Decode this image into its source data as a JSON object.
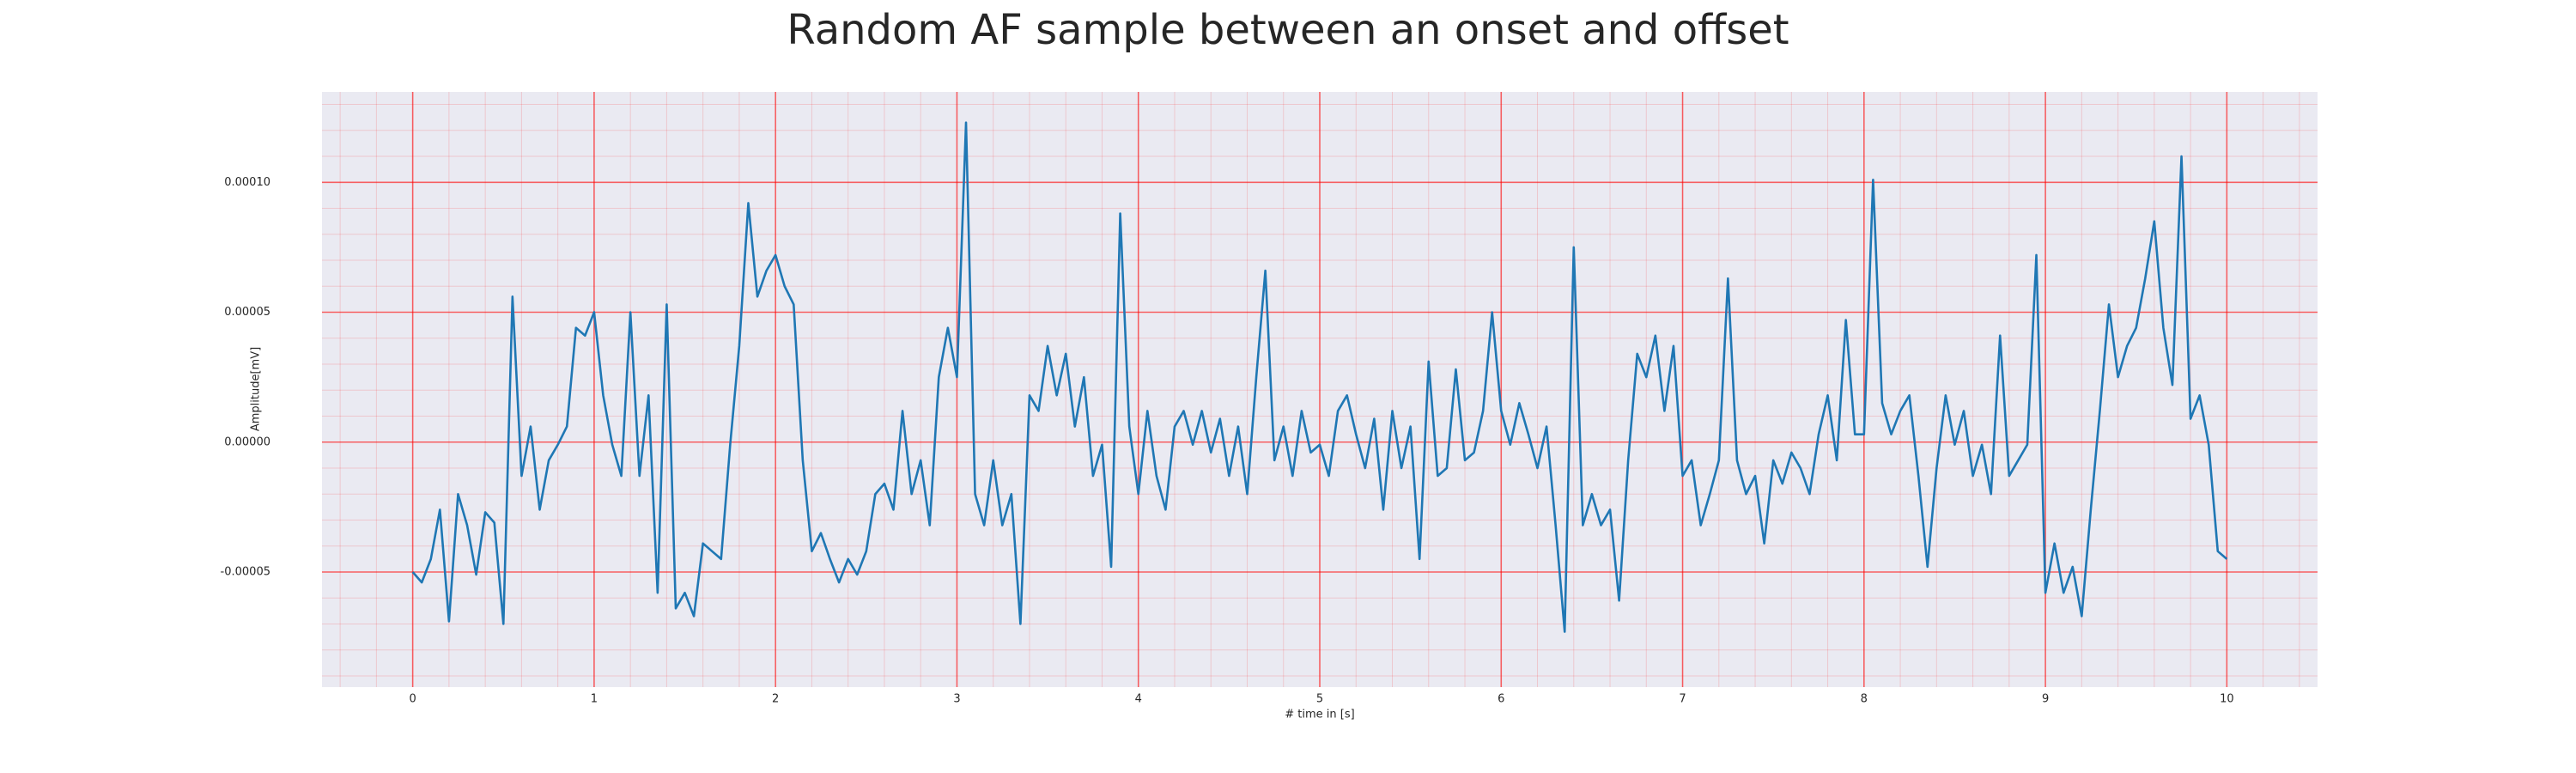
{
  "chart_data": {
    "type": "line",
    "title": "Random AF sample between an onset and offset",
    "xlabel": "# time in [s]",
    "ylabel": "Amplitude[mV]",
    "x": [
      0,
      0.05,
      0.1,
      0.15,
      0.2,
      0.25,
      0.3,
      0.35,
      0.4,
      0.45,
      0.5,
      0.55,
      0.6,
      0.65,
      0.7,
      0.75,
      0.8,
      0.85,
      0.9,
      0.95,
      1,
      1.05,
      1.1,
      1.15,
      1.2,
      1.25,
      1.3,
      1.35,
      1.4,
      1.45,
      1.5,
      1.55,
      1.6,
      1.65,
      1.7,
      1.75,
      1.8,
      1.85,
      1.9,
      1.95,
      2,
      2.05,
      2.1,
      2.15,
      2.2,
      2.25,
      2.3,
      2.35,
      2.4,
      2.45,
      2.5,
      2.55,
      2.6,
      2.65,
      2.7,
      2.75,
      2.8,
      2.85,
      2.9,
      2.95,
      3,
      3.05,
      3.1,
      3.15,
      3.2,
      3.25,
      3.3,
      3.35,
      3.4,
      3.45,
      3.5,
      3.55,
      3.6,
      3.65,
      3.7,
      3.75,
      3.8,
      3.85,
      3.9,
      3.95,
      4,
      4.05,
      4.1,
      4.15,
      4.2,
      4.25,
      4.3,
      4.35,
      4.4,
      4.45,
      4.5,
      4.55,
      4.6,
      4.65,
      4.7,
      4.75,
      4.8,
      4.85,
      4.9,
      4.95,
      5,
      5.05,
      5.1,
      5.15,
      5.2,
      5.25,
      5.3,
      5.35,
      5.4,
      5.45,
      5.5,
      5.55,
      5.6,
      5.65,
      5.7,
      5.75,
      5.8,
      5.85,
      5.9,
      5.95,
      6,
      6.05,
      6.1,
      6.15,
      6.2,
      6.25,
      6.3,
      6.35,
      6.4,
      6.45,
      6.5,
      6.55,
      6.6,
      6.65,
      6.7,
      6.75,
      6.8,
      6.85,
      6.9,
      6.95,
      7,
      7.05,
      7.1,
      7.15,
      7.2,
      7.25,
      7.3,
      7.35,
      7.4,
      7.45,
      7.5,
      7.55,
      7.6,
      7.65,
      7.7,
      7.75,
      7.8,
      7.85,
      7.9,
      7.95,
      8,
      8.05,
      8.1,
      8.15,
      8.2,
      8.25,
      8.3,
      8.35,
      8.4,
      8.45,
      8.5,
      8.55,
      8.6,
      8.65,
      8.7,
      8.75,
      8.8,
      8.85,
      8.9,
      8.95,
      9,
      9.05,
      9.1,
      9.15,
      9.2,
      9.25,
      9.3,
      9.35,
      9.4,
      9.45,
      9.5,
      9.55,
      9.6,
      9.65,
      9.7,
      9.75,
      9.8,
      9.85,
      9.9,
      9.95,
      10
    ],
    "values": [
      -5e-05,
      -5.4e-05,
      -4.5e-05,
      -2.6e-05,
      -6.9e-05,
      -2e-05,
      -3.2e-05,
      -5.1e-05,
      -2.7e-05,
      -3.1e-05,
      -7e-05,
      5.6e-05,
      -1.3e-05,
      6e-06,
      -2.6e-05,
      -7e-06,
      -1e-06,
      6e-06,
      4.4e-05,
      4.1e-05,
      5e-05,
      1.8e-05,
      -1e-06,
      -1.3e-05,
      5e-05,
      -1.3e-05,
      1.8e-05,
      -5.8e-05,
      5.3e-05,
      -6.4e-05,
      -5.8e-05,
      -6.7e-05,
      -3.9e-05,
      -4.2e-05,
      -4.5e-05,
      -1e-06,
      3.7e-05,
      9.2e-05,
      5.6e-05,
      6.6e-05,
      7.2e-05,
      6e-05,
      5.3e-05,
      -7e-06,
      -4.2e-05,
      -3.5e-05,
      -4.5e-05,
      -5.4e-05,
      -4.5e-05,
      -5.1e-05,
      -4.2e-05,
      -2e-05,
      -1.6e-05,
      -2.6e-05,
      1.2e-05,
      -2e-05,
      -7e-06,
      -3.2e-05,
      2.5e-05,
      4.4e-05,
      2.5e-05,
      0.000123,
      -2e-05,
      -3.2e-05,
      -7e-06,
      -3.2e-05,
      -2e-05,
      -7e-05,
      1.8e-05,
      1.2e-05,
      3.7e-05,
      1.8e-05,
      3.4e-05,
      6e-06,
      2.5e-05,
      -1.3e-05,
      -1e-06,
      -4.8e-05,
      8.8e-05,
      6e-06,
      -2e-05,
      1.2e-05,
      -1.3e-05,
      -2.6e-05,
      6e-06,
      1.2e-05,
      -1e-06,
      1.2e-05,
      -4e-06,
      9e-06,
      -1.3e-05,
      6e-06,
      -2e-05,
      2.5e-05,
      6.6e-05,
      -7e-06,
      6e-06,
      -1.3e-05,
      1.2e-05,
      -4e-06,
      -1e-06,
      -1.3e-05,
      1.2e-05,
      1.8e-05,
      3e-06,
      -1e-05,
      9e-06,
      -2.6e-05,
      1.2e-05,
      -1e-05,
      6e-06,
      -4.5e-05,
      3.1e-05,
      -1.3e-05,
      -1e-05,
      2.8e-05,
      -7e-06,
      -4e-06,
      1.2e-05,
      5e-05,
      1.2e-05,
      -1e-06,
      1.5e-05,
      3e-06,
      -1e-05,
      6e-06,
      -3.2e-05,
      -7.3e-05,
      7.5e-05,
      -3.2e-05,
      -2e-05,
      -3.2e-05,
      -2.6e-05,
      -6.1e-05,
      -7e-06,
      3.4e-05,
      2.5e-05,
      4.1e-05,
      1.2e-05,
      3.7e-05,
      -1.3e-05,
      -7e-06,
      -3.2e-05,
      -2e-05,
      -7e-06,
      6.3e-05,
      -7e-06,
      -2e-05,
      -1.3e-05,
      -3.9e-05,
      -7e-06,
      -1.6e-05,
      -4e-06,
      -1e-05,
      -2e-05,
      3e-06,
      1.8e-05,
      -7e-06,
      4.7e-05,
      3e-06,
      3e-06,
      0.000101,
      1.5e-05,
      3e-06,
      1.2e-05,
      1.8e-05,
      -1.3e-05,
      -4.8e-05,
      -1e-05,
      1.8e-05,
      -1e-06,
      1.2e-05,
      -1.3e-05,
      -1e-06,
      -2e-05,
      4.1e-05,
      -1.3e-05,
      -7e-06,
      -1e-06,
      7.2e-05,
      -5.8e-05,
      -3.9e-05,
      -5.8e-05,
      -4.8e-05,
      -6.7e-05,
      -2.6e-05,
      1.2e-05,
      5.3e-05,
      2.5e-05,
      3.7e-05,
      4.4e-05,
      6.3e-05,
      8.5e-05,
      4.4e-05,
      2.2e-05,
      0.00011,
      9e-06,
      1.8e-05,
      -1e-06,
      -4.2e-05,
      -4.5e-05
    ],
    "color": "#1f77b4",
    "xlim": [
      -0.5,
      10.5
    ],
    "xticks": [
      0,
      1,
      2,
      3,
      4,
      5,
      6,
      7,
      8,
      9,
      10
    ],
    "ylim": [
      -9.43e-05,
      0.0001348
    ],
    "yticks": [
      {
        "value": -5e-05,
        "label": "-0.00005"
      },
      {
        "value": 0,
        "label": "0.00000"
      },
      {
        "value": 5e-05,
        "label": "0.00005"
      },
      {
        "value": 0.0001,
        "label": "0.00010"
      }
    ],
    "grid": true,
    "minor_grid": true,
    "grid_color": "#ff0000"
  }
}
